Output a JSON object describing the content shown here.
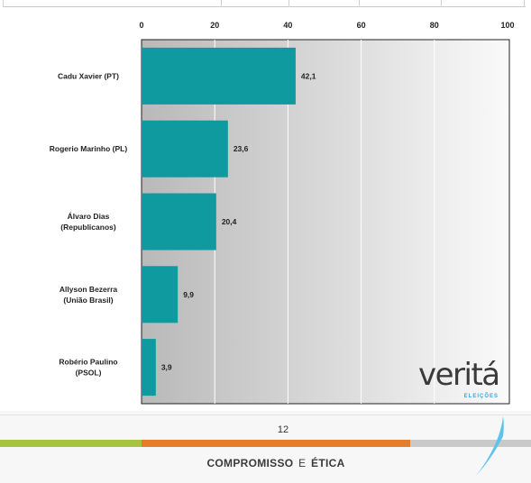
{
  "chart_data": {
    "type": "bar",
    "orientation": "horizontal",
    "categories": [
      [
        "Cadu Xavier (PT)"
      ],
      [
        "Rogerio Marinho (PL)"
      ],
      [
        "Álvaro Dias",
        "(Republicanos)"
      ],
      [
        "Allyson Bezerra",
        "(União Brasil)"
      ],
      [
        "Robério Paulino",
        "(PSOL)"
      ]
    ],
    "values": [
      42.1,
      23.6,
      20.4,
      9.9,
      3.9
    ],
    "value_labels": [
      "42,1",
      "23,6",
      "20,4",
      "9,9",
      "3,9"
    ],
    "xlim": [
      0,
      100
    ],
    "x_ticks": [
      "0",
      "20",
      "40",
      "60",
      "80",
      "100"
    ],
    "axis_position": "top",
    "bar_color": "#0e9a9e",
    "plot_background": "gradient gray to white",
    "grid": true
  },
  "logo": {
    "word": "veritá",
    "sub": "ELEIÇÕES"
  },
  "footer": {
    "page_number": "12",
    "motto_part1": "COMPROMISSO",
    "motto_connector": "E",
    "motto_part2": "ÉTICA",
    "stripe_colors": [
      "#a7c441",
      "#e57d2b",
      "#c9c9c9"
    ]
  }
}
